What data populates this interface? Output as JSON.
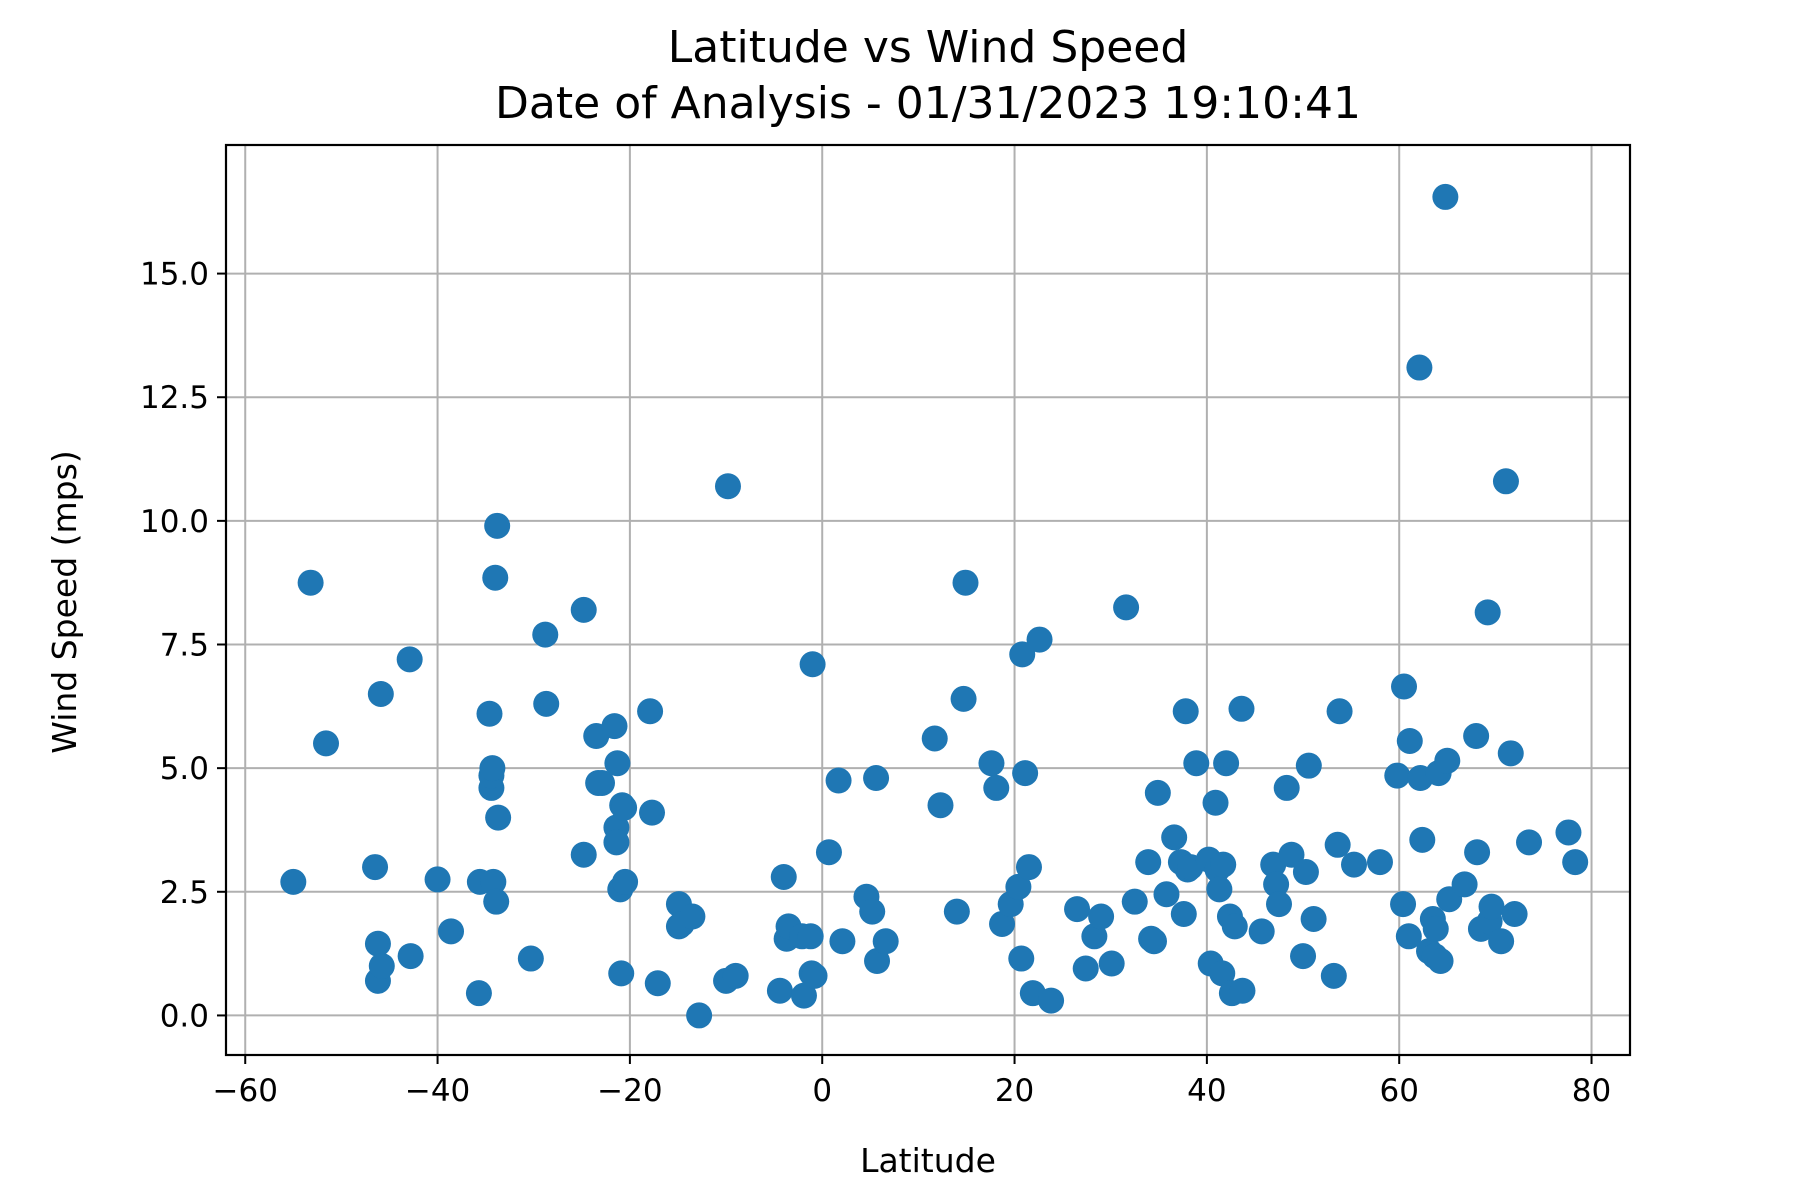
{
  "chart_data": {
    "type": "scatter",
    "title": "Latitude vs Wind Speed",
    "subtitle": "Date of Analysis - 01/31/2023 19:10:41",
    "xlabel": "Latitude",
    "ylabel": "Wind Speed (mps)",
    "xlim": [
      -62,
      84
    ],
    "ylim": [
      -0.8,
      17.6
    ],
    "xticks": [
      -60,
      -40,
      -20,
      0,
      20,
      40,
      60,
      80
    ],
    "xtick_labels": [
      "−60",
      "−40",
      "−20",
      "0",
      "20",
      "40",
      "60",
      "80"
    ],
    "yticks": [
      0.0,
      2.5,
      5.0,
      7.5,
      10.0,
      12.5,
      15.0
    ],
    "ytick_labels": [
      "0.0",
      "2.5",
      "5.0",
      "7.5",
      "10.0",
      "12.5",
      "15.0"
    ],
    "grid": true,
    "marker_color": "#1f77b4",
    "x": [
      -55.0,
      -53.2,
      -51.6,
      -46.5,
      -46.2,
      -46.2,
      -45.9,
      -45.8,
      -42.9,
      -42.8,
      -40.0,
      -38.6,
      -35.7,
      -35.6,
      -34.6,
      -34.4,
      -34.4,
      -34.3,
      -34.2,
      -34.0,
      -33.9,
      -33.8,
      -33.7,
      -30.3,
      -28.8,
      -28.7,
      -24.8,
      -24.8,
      -23.5,
      -23.3,
      -22.9,
      -21.6,
      -21.4,
      -21.4,
      -21.3,
      -21.0,
      -20.9,
      -20.8,
      -20.6,
      -20.5,
      -17.9,
      -17.7,
      -17.1,
      -14.9,
      -14.9,
      -14.6,
      -13.5,
      -12.8,
      -10.0,
      -9.8,
      -9.0,
      -4.4,
      -4.0,
      -3.7,
      -3.5,
      -2.1,
      -1.9,
      -1.2,
      -1.1,
      -1.0,
      -0.8,
      0.7,
      1.7,
      2.1,
      4.6,
      5.2,
      5.7,
      5.6,
      6.6,
      11.7,
      12.3,
      14.0,
      14.7,
      14.9,
      17.6,
      18.1,
      18.7,
      19.6,
      20.4,
      20.7,
      20.8,
      21.1,
      21.5,
      21.9,
      22.6,
      23.8,
      26.5,
      27.4,
      28.3,
      29.0,
      30.1,
      31.6,
      32.5,
      33.9,
      34.2,
      34.5,
      34.9,
      35.8,
      36.6,
      37.3,
      37.6,
      37.8,
      38.0,
      38.3,
      38.9,
      40.2,
      40.4,
      40.9,
      41.1,
      41.3,
      41.6,
      41.7,
      42.0,
      42.4,
      42.6,
      42.9,
      43.6,
      43.7,
      45.7,
      46.9,
      47.2,
      47.5,
      48.3,
      48.8,
      50.0,
      50.3,
      50.6,
      51.1,
      53.2,
      53.6,
      53.8,
      55.3,
      58.0,
      59.8,
      60.4,
      60.5,
      61.0,
      61.1,
      62.2,
      62.1,
      62.4,
      63.1,
      63.5,
      63.7,
      63.8,
      64.1,
      64.3,
      64.8,
      65.0,
      65.2,
      66.8,
      68.0,
      68.1,
      68.5,
      69.2,
      69.4,
      69.6,
      70.6,
      71.1,
      71.6,
      72.0,
      73.5,
      77.6,
      78.3
    ],
    "y": [
      2.7,
      8.75,
      5.5,
      3.0,
      1.45,
      0.7,
      6.5,
      1.0,
      7.2,
      1.2,
      2.75,
      1.7,
      0.45,
      2.7,
      6.1,
      4.6,
      4.85,
      5.0,
      2.7,
      8.85,
      2.3,
      9.9,
      4.0,
      1.15,
      7.7,
      6.3,
      8.2,
      3.25,
      5.65,
      4.7,
      4.7,
      5.85,
      3.8,
      3.5,
      5.1,
      2.55,
      0.85,
      4.25,
      4.2,
      2.7,
      6.15,
      4.1,
      0.65,
      2.25,
      1.8,
      1.85,
      2.0,
      0.0,
      0.7,
      10.7,
      0.8,
      0.5,
      2.8,
      1.55,
      1.8,
      1.6,
      0.4,
      1.6,
      0.85,
      7.1,
      0.8,
      3.3,
      4.75,
      1.5,
      2.4,
      2.1,
      1.1,
      4.8,
      1.5,
      5.6,
      4.25,
      2.1,
      6.4,
      8.75,
      5.1,
      4.6,
      1.85,
      2.25,
      2.6,
      1.15,
      7.3,
      4.9,
      3.0,
      0.45,
      7.6,
      0.3,
      2.15,
      0.95,
      1.6,
      2.0,
      1.05,
      8.25,
      2.3,
      3.1,
      1.55,
      1.5,
      4.5,
      2.45,
      3.6,
      3.1,
      2.05,
      6.15,
      2.95,
      3.0,
      5.1,
      3.15,
      1.05,
      4.3,
      2.95,
      2.55,
      0.85,
      3.05,
      5.1,
      2.0,
      0.45,
      1.8,
      6.2,
      0.5,
      1.7,
      3.05,
      2.65,
      2.25,
      4.6,
      3.25,
      1.2,
      2.9,
      5.05,
      1.95,
      0.8,
      3.45,
      6.15,
      3.05,
      3.1,
      4.85,
      2.25,
      6.65,
      1.6,
      5.55,
      4.8,
      13.1,
      3.55,
      1.3,
      1.95,
      1.2,
      1.75,
      4.9,
      1.1,
      16.55,
      5.15,
      2.35,
      2.65,
      5.65,
      3.3,
      1.75,
      8.15,
      1.9,
      2.2,
      1.5,
      10.8,
      5.3,
      2.05,
      3.5,
      3.7,
      3.1
    ]
  }
}
